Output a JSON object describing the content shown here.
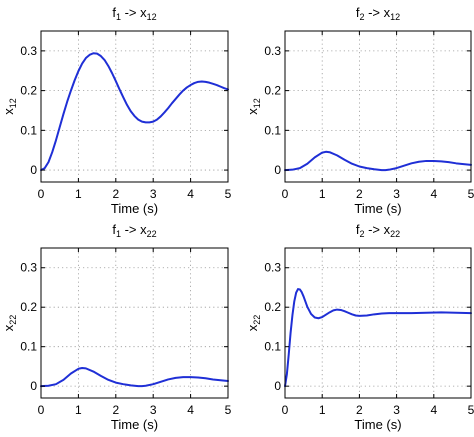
{
  "chart_data": [
    {
      "type": "line",
      "title": "f",
      "title_sub1": "1",
      "title_arrow": " -> x",
      "title_sub2": "12",
      "xlabel": "Time (s)",
      "ylabel": "x",
      "ylabel_sub": "12",
      "xlim": [
        0,
        5
      ],
      "ylim": [
        -0.03,
        0.35
      ],
      "xticks": [
        0,
        1,
        2,
        3,
        4,
        5
      ],
      "yticks": [
        0,
        0.1,
        0.2,
        0.3
      ],
      "xtick_labels": [
        "0",
        "1",
        "2",
        "3",
        "4",
        "5"
      ],
      "ytick_labels": [
        "0",
        "0.1",
        "0.2",
        "0.3"
      ],
      "grid": true,
      "line_color": "#1f2fd6",
      "x": [
        0,
        0.1,
        0.2,
        0.3,
        0.4,
        0.5,
        0.6,
        0.7,
        0.8,
        0.9,
        1.0,
        1.1,
        1.2,
        1.3,
        1.4,
        1.5,
        1.6,
        1.7,
        1.8,
        1.9,
        2.0,
        2.1,
        2.2,
        2.3,
        2.4,
        2.5,
        2.6,
        2.7,
        2.8,
        2.9,
        3.0,
        3.1,
        3.2,
        3.3,
        3.4,
        3.5,
        3.6,
        3.7,
        3.8,
        3.9,
        4.0,
        4.1,
        4.2,
        4.3,
        4.4,
        4.5,
        4.6,
        4.7,
        4.8,
        4.9,
        5.0
      ],
      "y": [
        0,
        0.005,
        0.02,
        0.045,
        0.075,
        0.108,
        0.141,
        0.172,
        0.2,
        0.226,
        0.249,
        0.268,
        0.282,
        0.29,
        0.294,
        0.293,
        0.287,
        0.277,
        0.262,
        0.244,
        0.224,
        0.203,
        0.183,
        0.164,
        0.148,
        0.136,
        0.127,
        0.122,
        0.12,
        0.12,
        0.122,
        0.127,
        0.135,
        0.145,
        0.156,
        0.168,
        0.179,
        0.19,
        0.2,
        0.208,
        0.214,
        0.219,
        0.222,
        0.223,
        0.222,
        0.22,
        0.217,
        0.214,
        0.21,
        0.206,
        0.203
      ]
    },
    {
      "type": "line",
      "title": "f",
      "title_sub1": "2",
      "title_arrow": " -> x",
      "title_sub2": "12",
      "xlabel": "Time (s)",
      "ylabel": "x",
      "ylabel_sub": "12",
      "xlim": [
        0,
        5
      ],
      "ylim": [
        -0.03,
        0.35
      ],
      "xticks": [
        0,
        1,
        2,
        3,
        4,
        5
      ],
      "yticks": [
        0,
        0.1,
        0.2,
        0.3
      ],
      "xtick_labels": [
        "0",
        "1",
        "2",
        "3",
        "4",
        "5"
      ],
      "ytick_labels": [
        "0",
        "0.1",
        "0.2",
        "0.3"
      ],
      "grid": true,
      "line_color": "#1f2fd6",
      "x": [
        0,
        0.2,
        0.4,
        0.6,
        0.8,
        1.0,
        1.1,
        1.2,
        1.4,
        1.6,
        1.8,
        2.0,
        2.2,
        2.4,
        2.6,
        2.7,
        2.8,
        3.0,
        3.2,
        3.4,
        3.6,
        3.8,
        4.0,
        4.2,
        4.4,
        4.6,
        4.8,
        5.0
      ],
      "y": [
        0,
        0.001,
        0.005,
        0.016,
        0.032,
        0.044,
        0.046,
        0.045,
        0.037,
        0.026,
        0.016,
        0.009,
        0.005,
        0.002,
        0.0,
        0.0,
        0.001,
        0.005,
        0.011,
        0.017,
        0.021,
        0.023,
        0.023,
        0.022,
        0.02,
        0.017,
        0.015,
        0.013
      ]
    },
    {
      "type": "line",
      "title": "f",
      "title_sub1": "1",
      "title_arrow": " -> x",
      "title_sub2": "22",
      "xlabel": "Time (s)",
      "ylabel": "x",
      "ylabel_sub": "22",
      "xlim": [
        0,
        5
      ],
      "ylim": [
        -0.03,
        0.35
      ],
      "xticks": [
        0,
        1,
        2,
        3,
        4,
        5
      ],
      "yticks": [
        0,
        0.1,
        0.2,
        0.3
      ],
      "xtick_labels": [
        "0",
        "1",
        "2",
        "3",
        "4",
        "5"
      ],
      "ytick_labels": [
        "0",
        "0.1",
        "0.2",
        "0.3"
      ],
      "grid": true,
      "line_color": "#1f2fd6",
      "x": [
        0,
        0.2,
        0.4,
        0.6,
        0.8,
        1.0,
        1.1,
        1.2,
        1.4,
        1.6,
        1.8,
        2.0,
        2.2,
        2.4,
        2.6,
        2.7,
        2.8,
        3.0,
        3.2,
        3.4,
        3.6,
        3.8,
        4.0,
        4.2,
        4.4,
        4.6,
        4.8,
        5.0
      ],
      "y": [
        0,
        0.001,
        0.005,
        0.016,
        0.032,
        0.044,
        0.046,
        0.045,
        0.037,
        0.026,
        0.016,
        0.009,
        0.005,
        0.002,
        0.0,
        0.0,
        0.001,
        0.005,
        0.011,
        0.017,
        0.021,
        0.023,
        0.023,
        0.022,
        0.02,
        0.017,
        0.015,
        0.013
      ]
    },
    {
      "type": "line",
      "title": "f",
      "title_sub1": "2",
      "title_arrow": " -> x",
      "title_sub2": "22",
      "xlabel": "Time (s)",
      "ylabel": "x",
      "ylabel_sub": "22",
      "xlim": [
        0,
        5
      ],
      "ylim": [
        -0.03,
        0.35
      ],
      "xticks": [
        0,
        1,
        2,
        3,
        4,
        5
      ],
      "yticks": [
        0,
        0.1,
        0.2,
        0.3
      ],
      "xtick_labels": [
        "0",
        "1",
        "2",
        "3",
        "4",
        "5"
      ],
      "ytick_labels": [
        "0",
        "0.1",
        "0.2",
        "0.3"
      ],
      "grid": true,
      "line_color": "#1f2fd6",
      "x": [
        0,
        0.05,
        0.1,
        0.15,
        0.2,
        0.25,
        0.3,
        0.35,
        0.4,
        0.45,
        0.5,
        0.55,
        0.6,
        0.7,
        0.8,
        0.9,
        1.0,
        1.1,
        1.2,
        1.3,
        1.4,
        1.5,
        1.6,
        1.7,
        1.8,
        1.9,
        2.0,
        2.2,
        2.4,
        2.6,
        2.8,
        3.0,
        3.4,
        3.8,
        4.2,
        4.6,
        5.0
      ],
      "y": [
        0,
        0.03,
        0.08,
        0.135,
        0.18,
        0.215,
        0.237,
        0.246,
        0.245,
        0.238,
        0.227,
        0.214,
        0.201,
        0.183,
        0.174,
        0.172,
        0.175,
        0.181,
        0.187,
        0.192,
        0.194,
        0.193,
        0.19,
        0.186,
        0.182,
        0.179,
        0.178,
        0.179,
        0.182,
        0.184,
        0.185,
        0.185,
        0.185,
        0.186,
        0.187,
        0.186,
        0.185
      ]
    }
  ]
}
